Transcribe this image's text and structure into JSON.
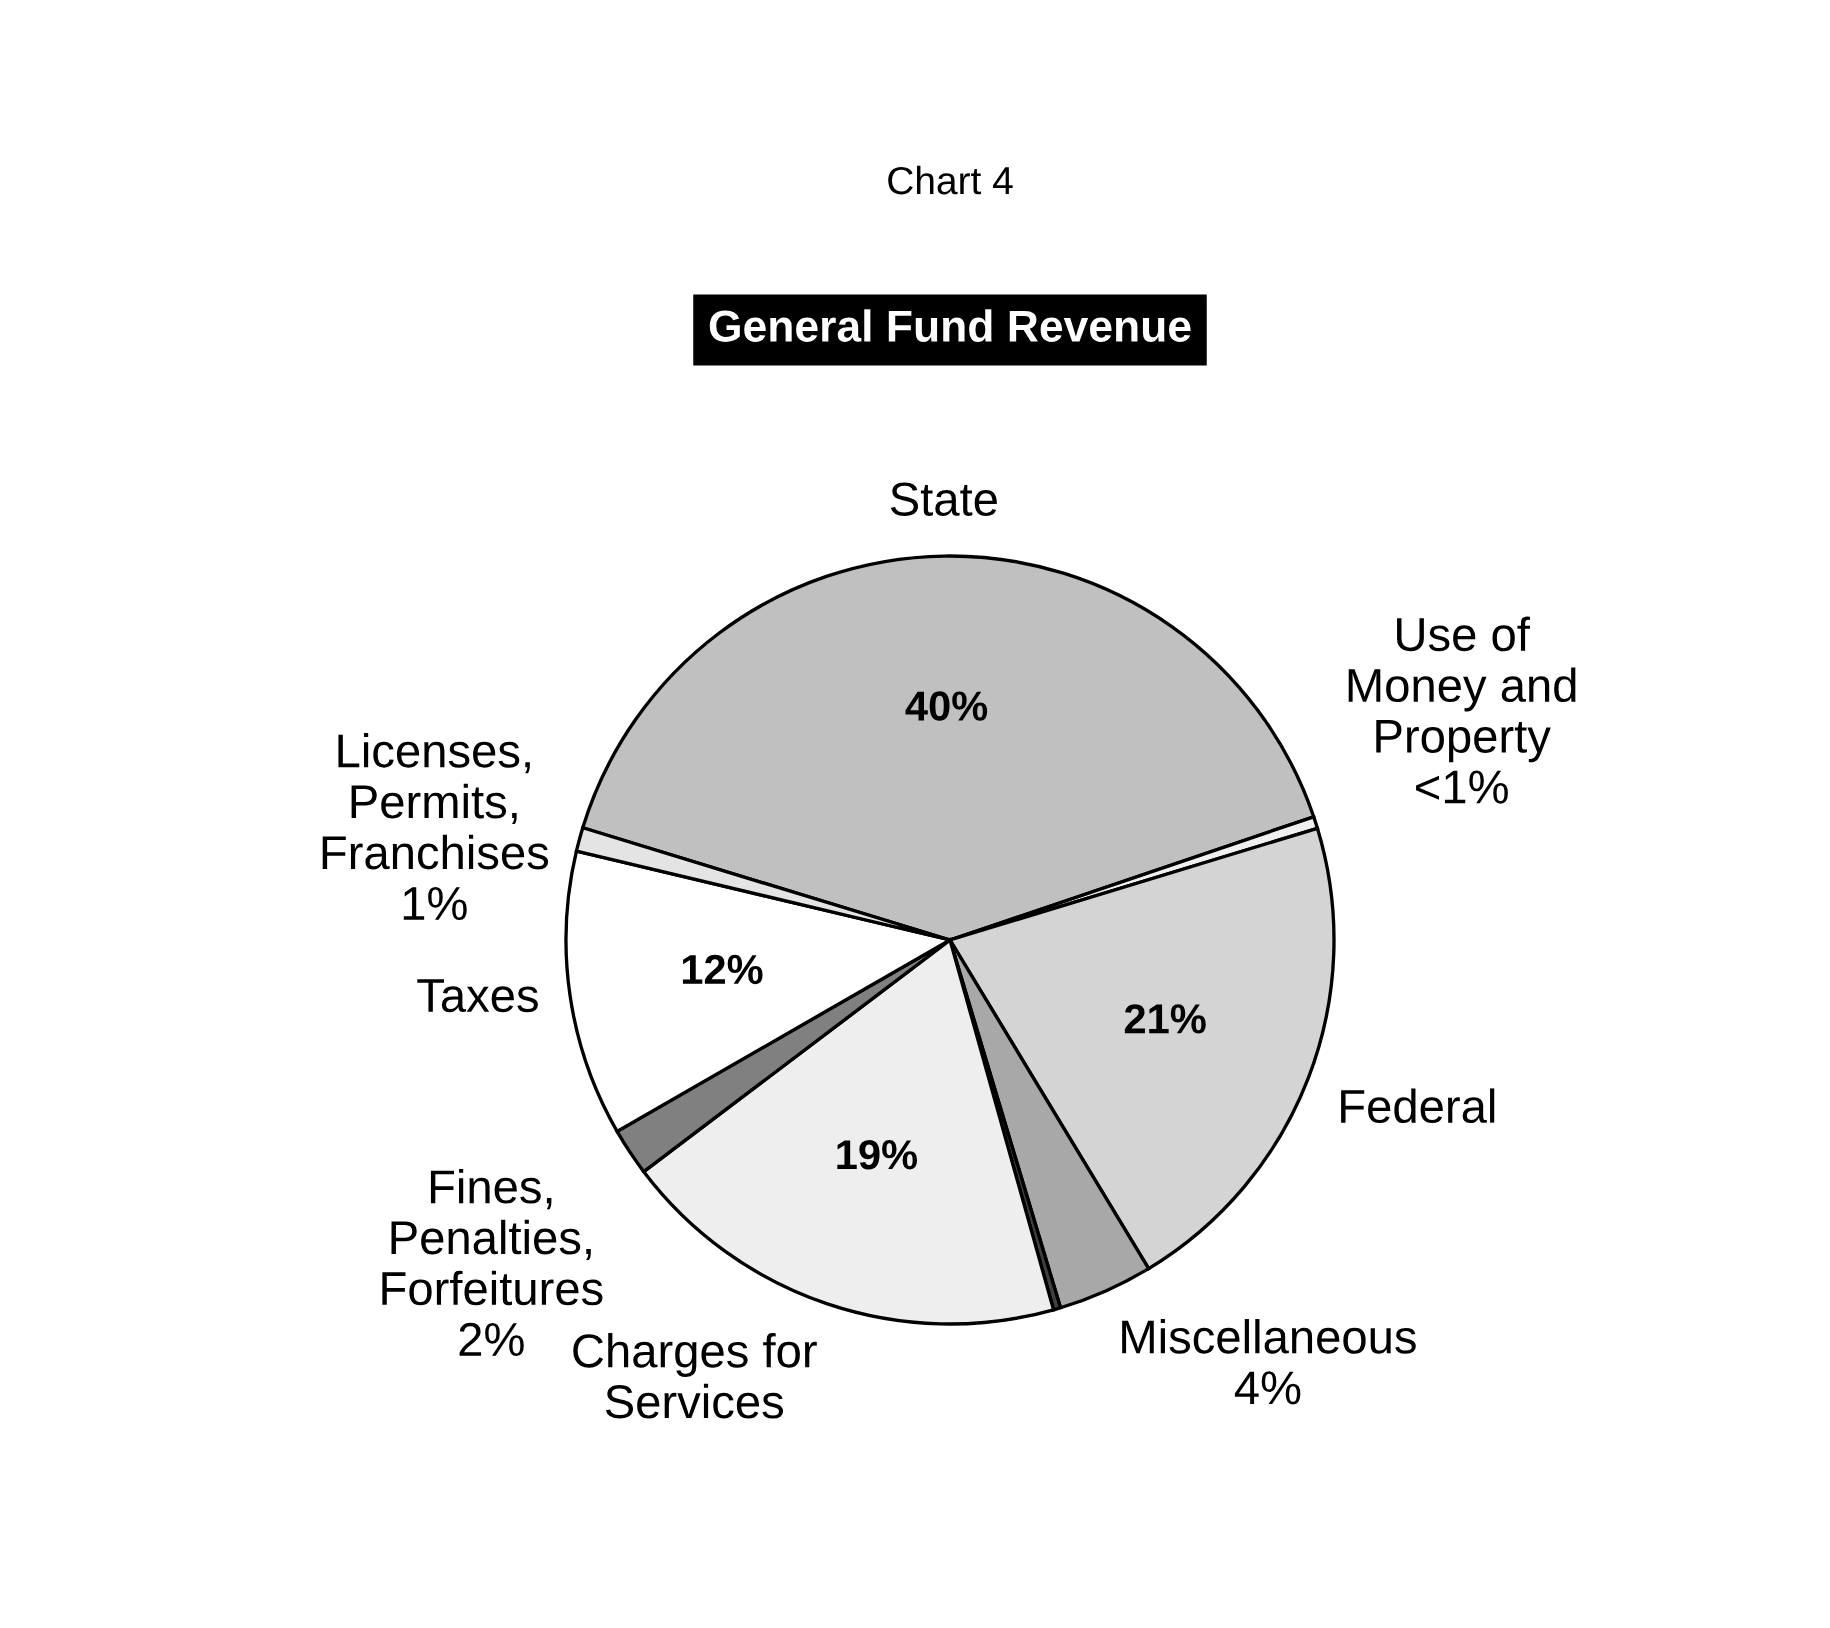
{
  "chart_data": {
    "type": "pie",
    "subtitle": "Chart 4",
    "title": "General Fund Revenue",
    "categories": [
      "State",
      "Use of\nMoney and\nProperty",
      "Federal",
      "Miscellaneous",
      null,
      "Charges for\nServices",
      "Fines,\nPenalties,\nForfeitures",
      "Taxes",
      "Licenses,\nPermits,\nFranchises"
    ],
    "values": [
      40,
      0.5,
      21,
      4,
      0.3,
      19,
      2,
      12,
      1
    ],
    "value_labels": [
      "40%",
      "<1%",
      "21%",
      "4%",
      null,
      "19%",
      "2%",
      "12%",
      "1%"
    ],
    "colors": [
      "#c0c0c0",
      "#f0f0f0",
      "#d4d4d4",
      "#a8a8a8",
      "#404040",
      "#eeeeee",
      "#808080",
      "#ffffff",
      "#e4e4e4"
    ],
    "legend": false
  }
}
